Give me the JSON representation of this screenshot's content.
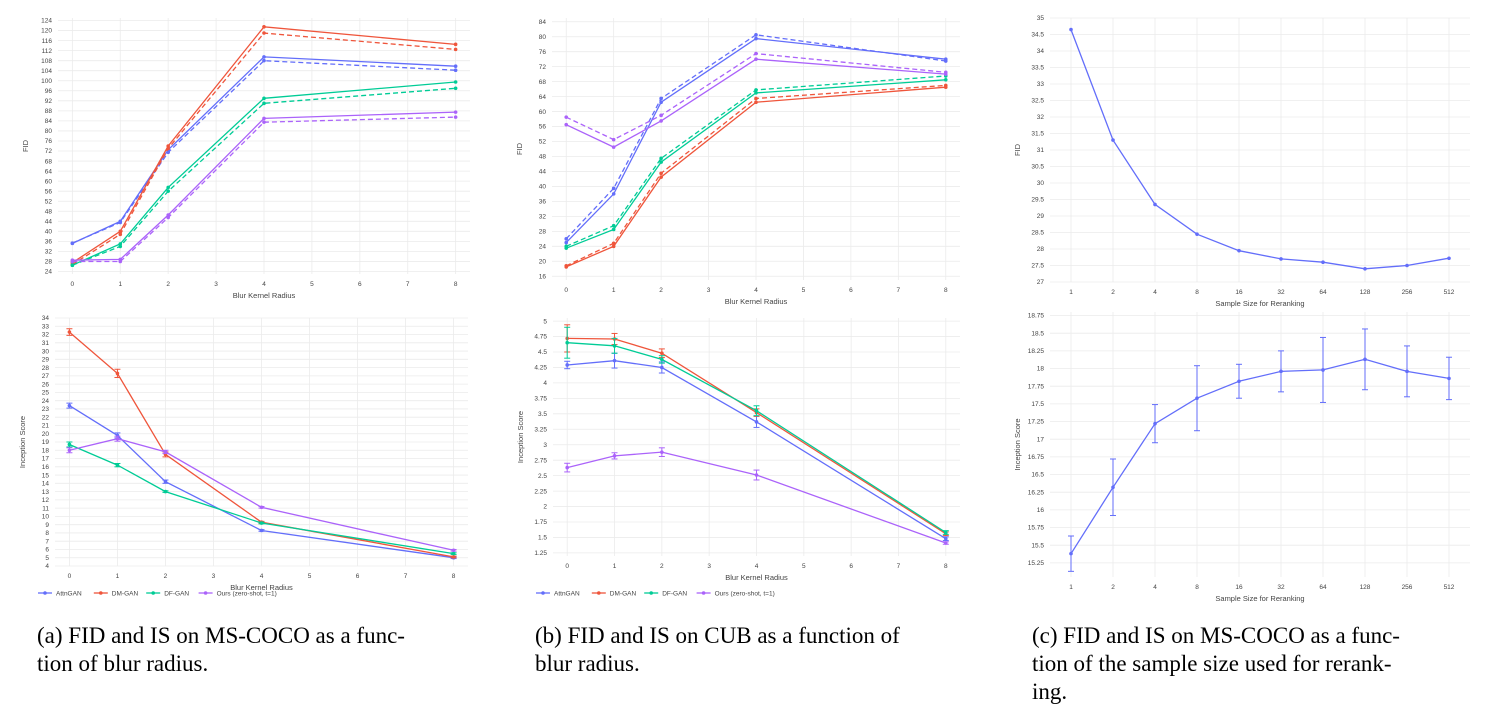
{
  "legend": [
    {
      "name": "AttnGAN",
      "color": "#636efa"
    },
    {
      "name": "DM-GAN",
      "color": "#ef553b"
    },
    {
      "name": "DF-GAN",
      "color": "#00cc96"
    },
    {
      "name": "Ours (zero-shot, t=1)",
      "color": "#ab63fa"
    }
  ],
  "captions": {
    "a": [
      "(a) FID and IS on MS-COCO as a func-",
      "tion of blur radius."
    ],
    "b": [
      "(b) FID and IS on CUB as a function of",
      "blur radius."
    ],
    "c": [
      "(c) FID and IS on MS-COCO as a func-",
      "tion of the sample size used for rerank-",
      "ing."
    ]
  },
  "chart_data": [
    {
      "id": "a_fid",
      "type": "line",
      "xlabel": "Blur Kernel Radius",
      "ylabel": "FID",
      "xlim": [
        -0.3,
        8.3
      ],
      "ylim": [
        23,
        125
      ],
      "xticks": [
        0,
        1,
        2,
        3,
        4,
        5,
        6,
        7,
        8
      ],
      "yticks": [
        24,
        28,
        32,
        36,
        40,
        44,
        48,
        52,
        56,
        60,
        64,
        68,
        72,
        76,
        80,
        84,
        88,
        92,
        96,
        100,
        104,
        108,
        112,
        116,
        120,
        124
      ],
      "x": [
        0,
        1,
        2,
        4,
        8
      ],
      "series": [
        {
          "name": "AttnGAN",
          "style": "solid",
          "values": [
            35.2,
            44.0,
            72.5,
            109.5,
            105.8
          ]
        },
        {
          "name": "AttnGAN",
          "style": "dash",
          "values": [
            35.3,
            43.5,
            71.5,
            108.0,
            104.2
          ]
        },
        {
          "name": "DM-GAN",
          "style": "solid",
          "values": [
            27.5,
            40.0,
            74.0,
            121.5,
            114.5
          ]
        },
        {
          "name": "DM-GAN",
          "style": "dash",
          "values": [
            26.8,
            38.8,
            73.0,
            119.0,
            112.5
          ]
        },
        {
          "name": "DF-GAN",
          "style": "solid",
          "values": [
            26.5,
            35.0,
            57.5,
            93.0,
            99.5
          ]
        },
        {
          "name": "DF-GAN",
          "style": "dash",
          "values": [
            26.5,
            34.0,
            56.0,
            91.0,
            97.0
          ]
        },
        {
          "name": "Ours (zero-shot, t=1)",
          "style": "solid",
          "values": [
            28.5,
            28.8,
            46.5,
            85.0,
            87.5
          ]
        },
        {
          "name": "Ours (zero-shot, t=1)",
          "style": "dash",
          "values": [
            28.0,
            28.0,
            45.5,
            83.5,
            85.5
          ]
        }
      ]
    },
    {
      "id": "a_is",
      "type": "line",
      "xlabel": "Blur Kernel Radius",
      "ylabel": "Inception Score",
      "xlim": [
        -0.3,
        8.3
      ],
      "ylim": [
        4,
        34
      ],
      "xticks": [
        0,
        1,
        2,
        3,
        4,
        5,
        6,
        7,
        8
      ],
      "yticks": [
        4,
        5,
        6,
        7,
        8,
        9,
        10,
        11,
        12,
        13,
        14,
        15,
        16,
        17,
        18,
        19,
        20,
        21,
        22,
        23,
        24,
        25,
        26,
        27,
        28,
        29,
        30,
        31,
        32,
        33,
        34
      ],
      "x": [
        0,
        1,
        2,
        4,
        8
      ],
      "series": [
        {
          "name": "AttnGAN",
          "style": "solid",
          "values": [
            23.4,
            19.8,
            14.2,
            8.3,
            5.0
          ],
          "err": [
            0.3,
            0.3,
            0.2,
            0.1,
            0.1
          ]
        },
        {
          "name": "DM-GAN",
          "style": "solid",
          "values": [
            32.3,
            27.3,
            17.5,
            9.3,
            5.1
          ],
          "err": [
            0.4,
            0.5,
            0.3,
            0.1,
            0.1
          ]
        },
        {
          "name": "DF-GAN",
          "style": "solid",
          "values": [
            18.7,
            16.2,
            13.0,
            9.2,
            5.5
          ],
          "err": [
            0.3,
            0.2,
            0.1,
            0.1,
            0.1
          ]
        },
        {
          "name": "Ours (zero-shot, t=1)",
          "style": "solid",
          "values": [
            18.0,
            19.4,
            17.8,
            11.1,
            5.9
          ],
          "err": [
            0.3,
            0.3,
            0.2,
            0.1,
            0.1
          ]
        }
      ]
    },
    {
      "id": "b_fid",
      "type": "line",
      "xlabel": "Blur Kernel Radius",
      "ylabel": "FID",
      "xlim": [
        -0.3,
        8.3
      ],
      "ylim": [
        15,
        85
      ],
      "xticks": [
        0,
        1,
        2,
        3,
        4,
        5,
        6,
        7,
        8
      ],
      "yticks": [
        16,
        20,
        24,
        28,
        32,
        36,
        40,
        44,
        48,
        52,
        56,
        60,
        64,
        68,
        72,
        76,
        80,
        84
      ],
      "x": [
        0,
        1,
        2,
        4,
        8
      ],
      "series": [
        {
          "name": "AttnGAN",
          "style": "solid",
          "values": [
            25.0,
            38.0,
            62.5,
            79.5,
            74.0
          ]
        },
        {
          "name": "AttnGAN",
          "style": "dash",
          "values": [
            26.0,
            39.5,
            63.5,
            80.5,
            73.5
          ]
        },
        {
          "name": "DM-GAN",
          "style": "solid",
          "values": [
            18.5,
            24.0,
            42.5,
            62.5,
            66.5
          ]
        },
        {
          "name": "DM-GAN",
          "style": "dash",
          "values": [
            18.8,
            24.8,
            43.5,
            63.5,
            67.0
          ]
        },
        {
          "name": "DF-GAN",
          "style": "solid",
          "values": [
            23.5,
            28.5,
            46.5,
            65.0,
            68.5
          ]
        },
        {
          "name": "DF-GAN",
          "style": "dash",
          "values": [
            24.0,
            29.5,
            47.5,
            65.8,
            69.5
          ]
        },
        {
          "name": "Ours (zero-shot, t=1)",
          "style": "solid",
          "values": [
            56.5,
            50.5,
            57.5,
            74.0,
            70.0
          ]
        },
        {
          "name": "Ours (zero-shot, t=1)",
          "style": "dash",
          "values": [
            58.5,
            52.5,
            59.0,
            75.5,
            70.5
          ]
        }
      ]
    },
    {
      "id": "b_is",
      "type": "line",
      "xlabel": "Blur Kernel Radius",
      "ylabel": "Inception Score",
      "xlim": [
        -0.3,
        8.3
      ],
      "ylim": [
        1.2,
        5.05
      ],
      "xticks": [
        0,
        1,
        2,
        3,
        4,
        5,
        6,
        7,
        8
      ],
      "yticks": [
        1.25,
        1.5,
        1.75,
        2,
        2.25,
        2.5,
        2.75,
        3,
        3.25,
        3.5,
        3.75,
        4,
        4.25,
        4.5,
        4.75,
        5
      ],
      "x": [
        0,
        1,
        2,
        4,
        8
      ],
      "series": [
        {
          "name": "AttnGAN",
          "style": "solid",
          "values": [
            4.29,
            4.36,
            4.25,
            3.37,
            1.48
          ],
          "err": [
            0.06,
            0.12,
            0.09,
            0.09,
            0.03
          ]
        },
        {
          "name": "DM-GAN",
          "style": "solid",
          "values": [
            4.72,
            4.71,
            4.48,
            3.52,
            1.56
          ],
          "err": [
            0.22,
            0.09,
            0.07,
            0.06,
            0.03
          ]
        },
        {
          "name": "DF-GAN",
          "style": "solid",
          "values": [
            4.65,
            4.6,
            4.38,
            3.55,
            1.58
          ],
          "err": [
            0.25,
            0.12,
            0.06,
            0.08,
            0.03
          ]
        },
        {
          "name": "Ours (zero-shot, t=1)",
          "style": "solid",
          "values": [
            2.63,
            2.82,
            2.88,
            2.51,
            1.41
          ],
          "err": [
            0.07,
            0.05,
            0.07,
            0.08,
            0.02
          ]
        }
      ]
    },
    {
      "id": "c_fid",
      "type": "line",
      "xlabel": "Sample Size for Reranking",
      "ylabel": "FID",
      "ylim": [
        27,
        35
      ],
      "categories": [
        "1",
        "2",
        "4",
        "8",
        "16",
        "32",
        "64",
        "128",
        "256",
        "512"
      ],
      "yticks": [
        27,
        27.5,
        28,
        28.5,
        29,
        29.5,
        30,
        30.5,
        31,
        31.5,
        32,
        32.5,
        33,
        33.5,
        34,
        34.5,
        35
      ],
      "series": [
        {
          "name": "",
          "style": "solid",
          "values": [
            34.65,
            31.3,
            29.35,
            28.45,
            27.95,
            27.7,
            27.6,
            27.4,
            27.5,
            27.72
          ]
        }
      ]
    },
    {
      "id": "c_is",
      "type": "line",
      "xlabel": "Sample Size for Reranking",
      "ylabel": "Inception Score",
      "ylim": [
        15.05,
        18.8
      ],
      "categories": [
        "1",
        "2",
        "4",
        "8",
        "16",
        "32",
        "64",
        "128",
        "256",
        "512"
      ],
      "yticks": [
        15.25,
        15.5,
        15.75,
        16,
        16.25,
        16.5,
        16.75,
        17,
        17.25,
        17.5,
        17.75,
        18,
        18.25,
        18.5,
        18.75
      ],
      "series": [
        {
          "name": "",
          "style": "solid",
          "values": [
            15.38,
            16.32,
            17.22,
            17.58,
            17.82,
            17.96,
            17.98,
            18.13,
            17.96,
            17.86
          ],
          "err": [
            0.25,
            0.4,
            0.27,
            0.46,
            0.24,
            0.29,
            0.46,
            0.43,
            0.36,
            0.3
          ]
        }
      ]
    }
  ]
}
